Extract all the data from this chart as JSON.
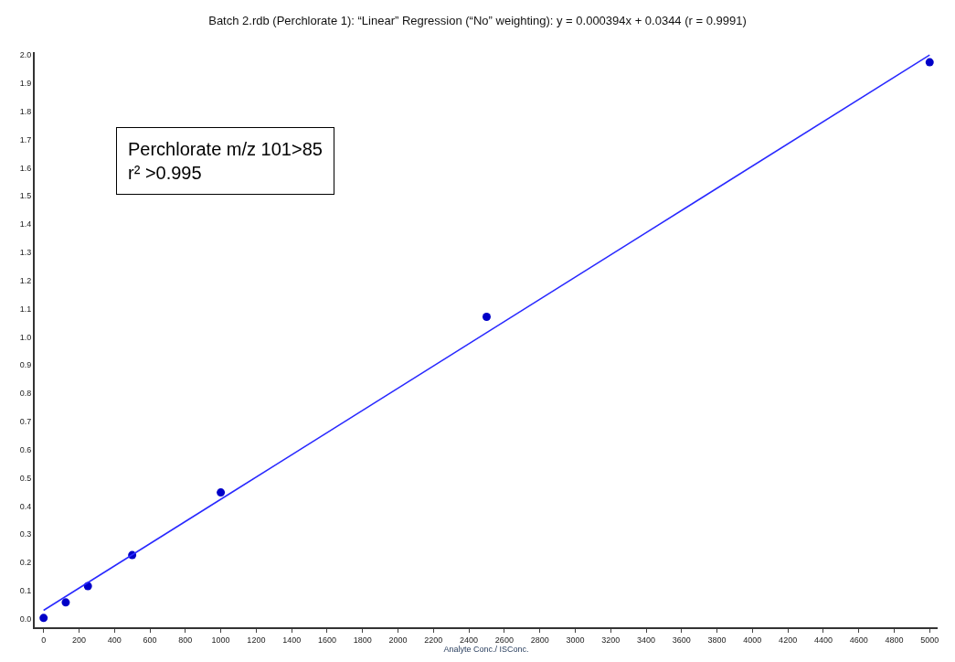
{
  "chart_data": {
    "type": "scatter",
    "title": "Batch 2.rdb (Perchlorate 1): “Linear” Regression (“No” weighting): y = 0.000394x + 0.0344 (r = 0.9991)",
    "xlabel": "Analyte Conc./ ISConc.",
    "x": [
      0,
      125,
      250,
      500,
      1000,
      2500,
      5000
    ],
    "series": [
      {
        "color": "#0000c8",
        "values": [
          0.003,
          0.058,
          0.116,
          0.226,
          0.448,
          1.071,
          1.974
        ],
        "marker": "circle"
      },
      {
        "type": "line",
        "color": "#2828ff",
        "x": [
          0,
          5000
        ],
        "values": [
          0.03,
          2.0
        ],
        "marker": "none",
        "line_style": "solid"
      }
    ],
    "xlim": [
      -50,
      5045
    ],
    "ylim": [
      -0.03,
      2.01
    ],
    "xticks": [
      0,
      200,
      400,
      600,
      800,
      1000,
      1200,
      1400,
      1600,
      1800,
      2000,
      2200,
      2400,
      2600,
      2800,
      3000,
      3200,
      3400,
      3600,
      3800,
      4000,
      4200,
      4400,
      4600,
      4800,
      5000
    ],
    "yticks": [
      {
        "value": 0,
        "label": "0.0"
      },
      0.1,
      0.2,
      0.3,
      0.4,
      0.5,
      0.6,
      0.7,
      0.8,
      0.9,
      {
        "value": 1,
        "label": "1.0"
      },
      1.1,
      1.2,
      1.3,
      1.4,
      1.5,
      1.6,
      1.7,
      1.8,
      1.9,
      {
        "value": 2,
        "label": "2.0"
      }
    ],
    "annotations": [
      "Perchlorate m/z 101>85\nr² >0.995"
    ]
  }
}
